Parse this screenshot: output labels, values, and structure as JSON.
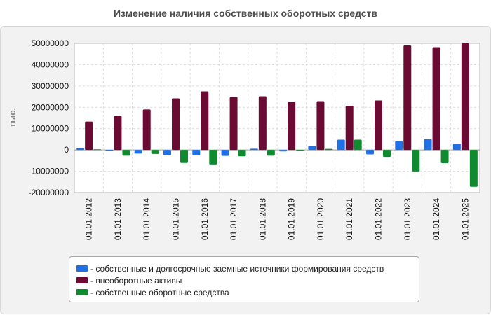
{
  "chart_data": {
    "type": "bar",
    "title": "Изменение наличия собственных оборотных средств",
    "ylabel": "тыс.",
    "xlabel": "",
    "ylim": [
      -20000000,
      50000000
    ],
    "yticks": [
      50000000,
      40000000,
      30000000,
      20000000,
      10000000,
      0,
      -10000000,
      -20000000
    ],
    "grid": true,
    "legend_position": "bottom",
    "categories": [
      "01.01.2012",
      "01.01.2013",
      "01.01.2014",
      "01.01.2015",
      "01.01.2016",
      "01.01.2017",
      "01.01.2018",
      "01.01.2019",
      "01.01.2020",
      "01.01.2021",
      "01.01.2022",
      "01.01.2023",
      "01.01.2024",
      "01.01.2025"
    ],
    "series": [
      {
        "name": "- собственные и долгосрочные заемные источники формирования средств",
        "color": "#1f6fe6",
        "values": [
          1000000,
          -500000,
          -1700000,
          -2500000,
          -2600000,
          -2800000,
          600000,
          -700000,
          1900000,
          4800000,
          -2100000,
          4100000,
          5000000,
          3000000
        ]
      },
      {
        "name": "- внеоборотные активы",
        "color": "#6b0a33",
        "values": [
          13300000,
          16000000,
          19000000,
          24200000,
          27500000,
          24800000,
          25200000,
          22500000,
          22900000,
          20700000,
          23200000,
          49000000,
          48200000,
          50000000
        ]
      },
      {
        "name": "- собственные оборотные средства",
        "color": "#0f8a2e",
        "values": [
          300000,
          -2700000,
          -1900000,
          -6100000,
          -6800000,
          -3000000,
          -2700000,
          -600000,
          500000,
          4800000,
          -3300000,
          -10100000,
          -6200000,
          -17300000
        ]
      }
    ]
  }
}
